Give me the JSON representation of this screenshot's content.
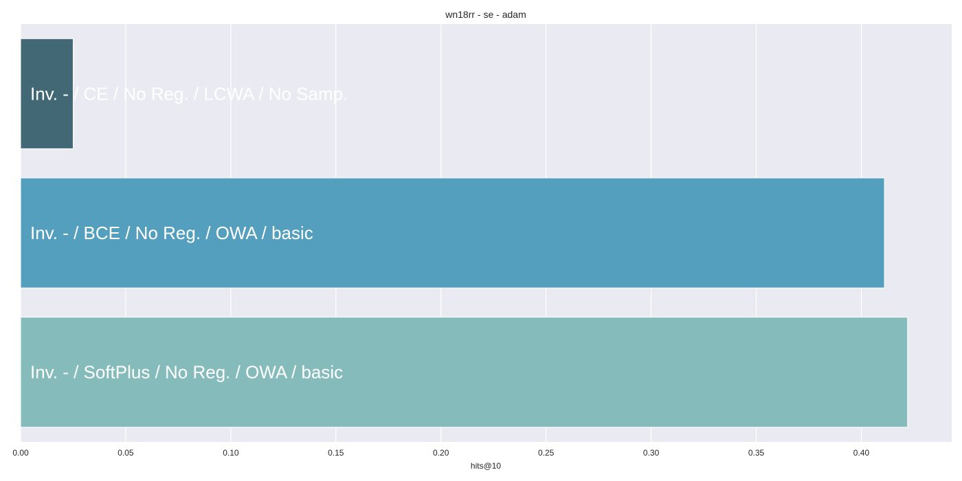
{
  "chart_data": {
    "type": "bar",
    "orientation": "horizontal",
    "title": "wn18rr - se - adam",
    "xlabel": "hits@10",
    "ylabel": "",
    "xlim": [
      0,
      0.443
    ],
    "xticks": [
      "0.00",
      "0.05",
      "0.10",
      "0.15",
      "0.20",
      "0.25",
      "0.30",
      "0.35",
      "0.40"
    ],
    "grid": true,
    "categories": [
      "Inv. - / CE / No Reg. / LCWA / No Samp.",
      "Inv. - / BCE / No Reg. / OWA / basic",
      "Inv. - / SoftPlus / No Reg. / OWA / basic"
    ],
    "values": [
      0.025,
      0.411,
      0.422
    ],
    "colors": [
      "#426875",
      "#549fbd",
      "#86bbbb"
    ],
    "background": "#eaeaf2"
  }
}
